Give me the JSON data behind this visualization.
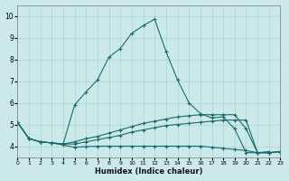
{
  "bg_color": "#cce9e9",
  "grid_color": "#aad4d4",
  "line_color": "#1a6b6b",
  "xlabel": "Humidex (Indice chaleur)",
  "xlim": [
    0,
    23
  ],
  "ylim": [
    3.5,
    10.5
  ],
  "xticks": [
    0,
    1,
    2,
    3,
    4,
    5,
    6,
    7,
    8,
    9,
    10,
    11,
    12,
    13,
    14,
    15,
    16,
    17,
    18,
    19,
    20,
    21,
    22,
    23
  ],
  "yticks": [
    4,
    5,
    6,
    7,
    8,
    9,
    10
  ],
  "curves": [
    {
      "x": [
        0,
        1,
        2,
        3,
        4,
        5,
        6,
        7,
        8,
        9,
        10,
        11,
        12,
        13,
        14,
        15,
        16,
        17,
        18,
        19,
        20,
        21,
        22,
        23
      ],
      "y": [
        5.1,
        4.35,
        4.2,
        4.15,
        4.1,
        5.9,
        6.5,
        7.05,
        8.1,
        8.5,
        9.2,
        9.55,
        9.85,
        8.35,
        7.05,
        6.0,
        5.5,
        5.3,
        5.35,
        4.8,
        3.7,
        3.7,
        3.75,
        null
      ],
      "style": "-"
    },
    {
      "x": [
        0,
        1,
        2,
        3,
        4,
        5,
        6,
        7,
        8,
        9,
        10,
        11,
        12,
        13,
        14,
        15,
        16,
        17,
        18,
        19,
        20,
        21,
        22,
        23
      ],
      "y": [
        5.1,
        4.35,
        4.2,
        4.15,
        4.1,
        4.2,
        4.35,
        4.45,
        4.6,
        4.75,
        4.9,
        5.05,
        5.15,
        5.25,
        5.35,
        5.4,
        5.45,
        5.45,
        5.45,
        5.45,
        4.8,
        3.7,
        3.7,
        3.75
      ],
      "style": "-"
    },
    {
      "x": [
        0,
        1,
        2,
        3,
        4,
        5,
        6,
        7,
        8,
        9,
        10,
        11,
        12,
        13,
        14,
        15,
        16,
        17,
        18,
        19,
        20,
        21,
        22,
        23
      ],
      "y": [
        5.1,
        4.35,
        4.2,
        4.15,
        4.1,
        4.1,
        4.2,
        4.3,
        4.4,
        4.5,
        4.65,
        4.75,
        4.85,
        4.95,
        5.0,
        5.05,
        5.1,
        5.15,
        5.2,
        5.2,
        5.2,
        3.7,
        3.7,
        3.75
      ],
      "style": "-"
    },
    {
      "x": [
        0,
        1,
        2,
        3,
        4,
        5,
        6,
        7,
        8,
        9,
        10,
        11,
        12,
        13,
        14,
        15,
        16,
        17,
        18,
        19,
        20,
        21,
        22,
        23
      ],
      "y": [
        5.1,
        4.35,
        4.2,
        4.15,
        4.05,
        3.95,
        3.98,
        4.0,
        4.0,
        4.0,
        4.0,
        4.0,
        4.0,
        4.0,
        4.0,
        4.0,
        4.0,
        3.95,
        3.9,
        3.85,
        3.8,
        3.7,
        3.7,
        3.75
      ],
      "style": "-"
    }
  ]
}
